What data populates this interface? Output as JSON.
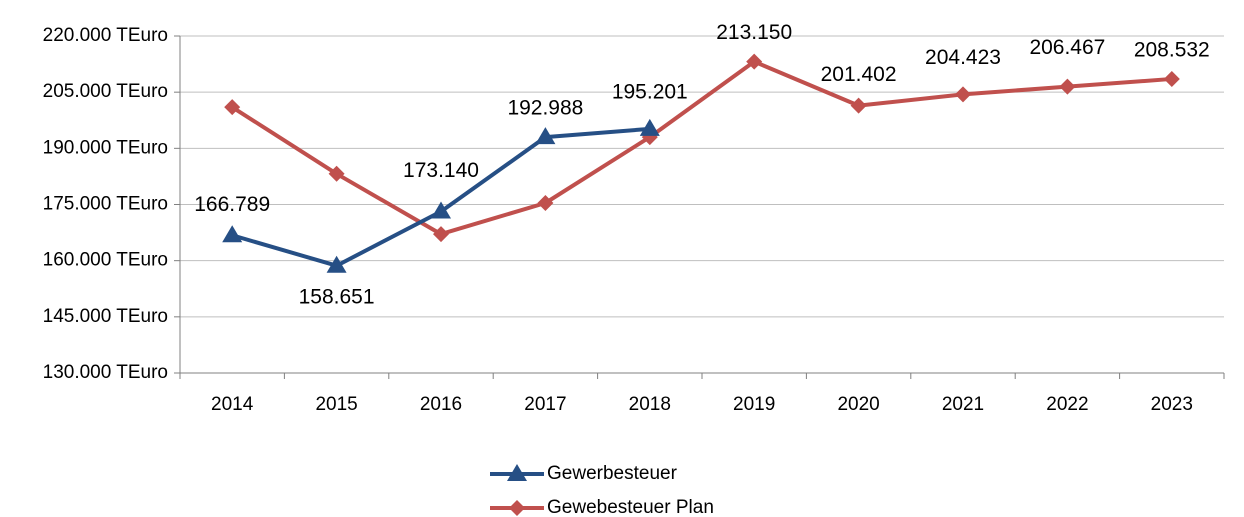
{
  "chart_data": {
    "type": "line",
    "categories": [
      "2014",
      "2015",
      "2016",
      "2017",
      "2018",
      "2019",
      "2020",
      "2021",
      "2022",
      "2023"
    ],
    "series": [
      {
        "name": "Gewerbesteuer",
        "color": "#264f85",
        "marker": "triangle",
        "values": [
          166789,
          158651,
          173140,
          192988,
          195201,
          null,
          null,
          null,
          null,
          null
        ],
        "value_labels": [
          "166.789",
          "158.651",
          "173.140",
          "192.988",
          "195.201",
          null,
          null,
          null,
          null,
          null
        ]
      },
      {
        "name": "Gewebesteuer Plan",
        "color": "#c0504d",
        "marker": "diamond",
        "values": [
          201000,
          183200,
          167100,
          175400,
          193000,
          213150,
          201402,
          204423,
          206467,
          208532
        ],
        "value_labels": [
          null,
          null,
          null,
          null,
          null,
          "213.150",
          "201.402",
          "204.423",
          "206.467",
          "208.532"
        ]
      }
    ],
    "ylim": [
      130000,
      220000
    ],
    "yticks": [
      {
        "value": 130000,
        "label": "130.000 TEuro"
      },
      {
        "value": 145000,
        "label": "145.000 TEuro"
      },
      {
        "value": 160000,
        "label": "160.000 TEuro"
      },
      {
        "value": 175000,
        "label": "175.000 TEuro"
      },
      {
        "value": 190000,
        "label": "190.000 TEuro"
      },
      {
        "value": 205000,
        "label": "205.000 TEuro"
      },
      {
        "value": 220000,
        "label": "220.000 TEuro"
      }
    ],
    "grid": true,
    "legend": "bottom"
  }
}
